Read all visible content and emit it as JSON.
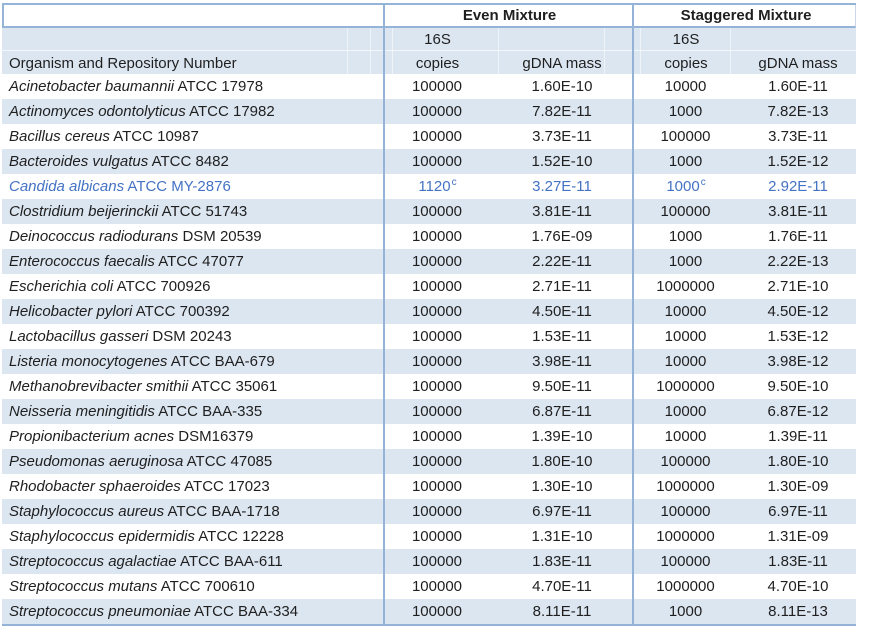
{
  "colors": {
    "row_shade": "#DCE6F1",
    "border": "#95B3D7",
    "highlight_text": "#4472C4",
    "text": "#1F1F1F"
  },
  "header": {
    "even_mixture": "Even Mixture",
    "staggered_mixture": "Staggered Mixture",
    "s16": "16S",
    "organism": "Organism and Repository Number",
    "copies": "copies",
    "gdna": "gDNA mass"
  },
  "chart_data": {
    "type": "table",
    "title": "",
    "column_groups": [
      "",
      "Even Mixture",
      "Staggered Mixture"
    ],
    "columns": [
      "Organism and Repository Number",
      "Even Mixture 16S copies",
      "Even Mixture gDNA mass",
      "Staggered Mixture 16S copies",
      "Staggered Mixture gDNA mass"
    ],
    "rows": [
      {
        "organism_italic": "Acinetobacter baumannii",
        "organism_plain": "ATCC 17978",
        "even_copies": "100000",
        "even_copies_sup": "",
        "even_gdna": "1.60E-10",
        "stag_copies": "10000",
        "stag_copies_sup": "",
        "stag_gdna": "1.60E-11",
        "highlight": false
      },
      {
        "organism_italic": "Actinomyces odontolyticus",
        "organism_plain": "ATCC 17982",
        "even_copies": "100000",
        "even_copies_sup": "",
        "even_gdna": "7.82E-11",
        "stag_copies": "1000",
        "stag_copies_sup": "",
        "stag_gdna": "7.82E-13",
        "highlight": false
      },
      {
        "organism_italic": "Bacillus cereus",
        "organism_plain": "ATCC 10987",
        "even_copies": "100000",
        "even_copies_sup": "",
        "even_gdna": "3.73E-11",
        "stag_copies": "100000",
        "stag_copies_sup": "",
        "stag_gdna": "3.73E-11",
        "highlight": false
      },
      {
        "organism_italic": "Bacteroides vulgatus",
        "organism_plain": "ATCC 8482",
        "even_copies": "100000",
        "even_copies_sup": "",
        "even_gdna": "1.52E-10",
        "stag_copies": "1000",
        "stag_copies_sup": "",
        "stag_gdna": "1.52E-12",
        "highlight": false
      },
      {
        "organism_italic": "Candida albicans",
        "organism_plain": "ATCC MY-2876",
        "even_copies": "1120",
        "even_copies_sup": "c",
        "even_gdna": "3.27E-11",
        "stag_copies": "1000",
        "stag_copies_sup": "c",
        "stag_gdna": "2.92E-11",
        "highlight": true
      },
      {
        "organism_italic": "Clostridium beijerinckii",
        "organism_plain": "ATCC 51743",
        "even_copies": "100000",
        "even_copies_sup": "",
        "even_gdna": "3.81E-11",
        "stag_copies": "100000",
        "stag_copies_sup": "",
        "stag_gdna": "3.81E-11",
        "highlight": false
      },
      {
        "organism_italic": "Deinococcus radiodurans",
        "organism_plain": "DSM 20539",
        "even_copies": "100000",
        "even_copies_sup": "",
        "even_gdna": "1.76E-09",
        "stag_copies": "1000",
        "stag_copies_sup": "",
        "stag_gdna": "1.76E-11",
        "highlight": false
      },
      {
        "organism_italic": "Enterococcus faecalis",
        "organism_plain": "ATCC 47077",
        "even_copies": "100000",
        "even_copies_sup": "",
        "even_gdna": "2.22E-11",
        "stag_copies": "1000",
        "stag_copies_sup": "",
        "stag_gdna": "2.22E-13",
        "highlight": false
      },
      {
        "organism_italic": "Escherichia coli",
        "organism_plain": "ATCC 700926",
        "even_copies": "100000",
        "even_copies_sup": "",
        "even_gdna": "2.71E-11",
        "stag_copies": "1000000",
        "stag_copies_sup": "",
        "stag_gdna": "2.71E-10",
        "highlight": false
      },
      {
        "organism_italic": "Helicobacter pylori",
        "organism_plain": "ATCC 700392",
        "even_copies": "100000",
        "even_copies_sup": "",
        "even_gdna": "4.50E-11",
        "stag_copies": "10000",
        "stag_copies_sup": "",
        "stag_gdna": "4.50E-12",
        "highlight": false
      },
      {
        "organism_italic": "Lactobacillus gasseri",
        "organism_plain": "DSM 20243",
        "even_copies": "100000",
        "even_copies_sup": "",
        "even_gdna": "1.53E-11",
        "stag_copies": "10000",
        "stag_copies_sup": "",
        "stag_gdna": "1.53E-12",
        "highlight": false
      },
      {
        "organism_italic": "Listeria monocytogenes",
        "organism_plain": "ATCC BAA-679",
        "even_copies": "100000",
        "even_copies_sup": "",
        "even_gdna": "3.98E-11",
        "stag_copies": "10000",
        "stag_copies_sup": "",
        "stag_gdna": "3.98E-12",
        "highlight": false
      },
      {
        "organism_italic": "Methanobrevibacter smithii",
        "organism_plain": "ATCC 35061",
        "even_copies": "100000",
        "even_copies_sup": "",
        "even_gdna": "9.50E-11",
        "stag_copies": "1000000",
        "stag_copies_sup": "",
        "stag_gdna": "9.50E-10",
        "highlight": false
      },
      {
        "organism_italic": "Neisseria meningitidis",
        "organism_plain": "ATCC BAA-335",
        "even_copies": "100000",
        "even_copies_sup": "",
        "even_gdna": "6.87E-11",
        "stag_copies": "10000",
        "stag_copies_sup": "",
        "stag_gdna": "6.87E-12",
        "highlight": false
      },
      {
        "organism_italic": "Propionibacterium acnes",
        "organism_plain": "DSM16379",
        "even_copies": "100000",
        "even_copies_sup": "",
        "even_gdna": "1.39E-10",
        "stag_copies": "10000",
        "stag_copies_sup": "",
        "stag_gdna": "1.39E-11",
        "highlight": false
      },
      {
        "organism_italic": "Pseudomonas aeruginosa",
        "organism_plain": "ATCC 47085",
        "even_copies": "100000",
        "even_copies_sup": "",
        "even_gdna": "1.80E-10",
        "stag_copies": "100000",
        "stag_copies_sup": "",
        "stag_gdna": "1.80E-10",
        "highlight": false
      },
      {
        "organism_italic": "Rhodobacter sphaeroides",
        "organism_plain": "ATCC 17023",
        "even_copies": "100000",
        "even_copies_sup": "",
        "even_gdna": "1.30E-10",
        "stag_copies": "1000000",
        "stag_copies_sup": "",
        "stag_gdna": "1.30E-09",
        "highlight": false
      },
      {
        "organism_italic": "Staphylococcus aureus",
        "organism_plain": "ATCC BAA-1718",
        "even_copies": "100000",
        "even_copies_sup": "",
        "even_gdna": "6.97E-11",
        "stag_copies": "100000",
        "stag_copies_sup": "",
        "stag_gdna": "6.97E-11",
        "highlight": false
      },
      {
        "organism_italic": "Staphylococcus epidermidis",
        "organism_plain": "ATCC 12228",
        "even_copies": "100000",
        "even_copies_sup": "",
        "even_gdna": "1.31E-10",
        "stag_copies": "1000000",
        "stag_copies_sup": "",
        "stag_gdna": "1.31E-09",
        "highlight": false
      },
      {
        "organism_italic": "Streptococcus agalactiae",
        "organism_plain": "ATCC BAA-611",
        "even_copies": "100000",
        "even_copies_sup": "",
        "even_gdna": "1.83E-11",
        "stag_copies": "100000",
        "stag_copies_sup": "",
        "stag_gdna": "1.83E-11",
        "highlight": false
      },
      {
        "organism_italic": "Streptococcus mutans",
        "organism_plain": "ATCC 700610",
        "even_copies": "100000",
        "even_copies_sup": "",
        "even_gdna": "4.70E-11",
        "stag_copies": "1000000",
        "stag_copies_sup": "",
        "stag_gdna": "4.70E-10",
        "highlight": false
      },
      {
        "organism_italic": "Streptococcus pneumoniae",
        "organism_plain": "ATCC BAA-334",
        "even_copies": "100000",
        "even_copies_sup": "",
        "even_gdna": "8.11E-11",
        "stag_copies": "1000",
        "stag_copies_sup": "",
        "stag_gdna": "8.11E-13",
        "highlight": false
      }
    ]
  }
}
